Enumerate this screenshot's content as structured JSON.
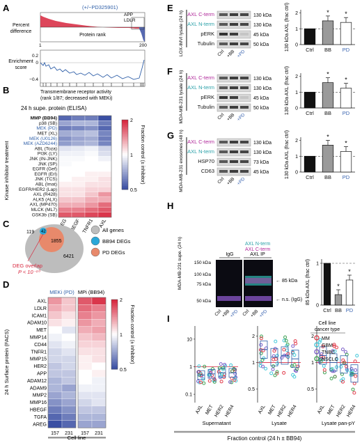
{
  "panels": {
    "A": {
      "label": "A",
      "header": "(+/−PD325901)",
      "y_top": "Percent difference",
      "x_top": "Protein rank",
      "ticks_top": [
        "1",
        "200"
      ],
      "gene_tags": [
        "APP",
        "LDLR"
      ],
      "y_bottom": "Enrichment score",
      "ticks_bottom": [
        "0.2",
        "0",
        "−0.4"
      ],
      "caption_lines": [
        "Transmembrane receptor activity",
        "(rank 1/87; decreased with MEKi)"
      ]
    },
    "B": {
      "label": "B",
      "title": "24 h supe. protein (ELISA)",
      "ylabel": "Kinase inhibitor treatment",
      "rows": [
        "MMP (BB94)",
        "p38 (SB)",
        "MEK (PD)",
        "MET (XL)",
        "MEK (U0126)",
        "MEK (AZD6244)",
        "ABL (Toza)",
        "PI3K (LY)",
        "JNK (IN-JNK)",
        "JNK (SP)",
        "EGFR (Gef)",
        "EGFR (Erl)",
        "JNK (TCS)",
        "ABL (Imat)",
        "EGFR/HER2 (Lap)",
        "AXL (R428)",
        "ALK5 (ALX)",
        "AXL (MP470)",
        "MLCK (ML7)",
        "GSK3b (SB)"
      ],
      "cols": [
        "AREG",
        "HBEGF",
        "TNFR1",
        "AXL"
      ],
      "values": [
        [
          0.55,
          0.6,
          0.6,
          0.5
        ],
        [
          0.7,
          0.75,
          0.75,
          0.6
        ],
        [
          0.6,
          0.62,
          0.65,
          0.55
        ],
        [
          0.72,
          0.75,
          0.78,
          0.62
        ],
        [
          0.65,
          0.7,
          0.72,
          0.6
        ],
        [
          0.68,
          0.72,
          0.75,
          0.62
        ],
        [
          0.9,
          0.92,
          0.95,
          0.85
        ],
        [
          0.95,
          0.95,
          0.98,
          0.88
        ],
        [
          0.98,
          0.98,
          1.0,
          0.95
        ],
        [
          0.98,
          1.0,
          1.0,
          1.0
        ],
        [
          1.0,
          1.0,
          1.0,
          1.0
        ],
        [
          1.0,
          1.0,
          1.05,
          1.05
        ],
        [
          1.0,
          1.05,
          1.05,
          1.1
        ],
        [
          1.05,
          1.05,
          1.1,
          1.1
        ],
        [
          1.1,
          1.1,
          1.15,
          1.15
        ],
        [
          1.1,
          1.1,
          1.2,
          1.4
        ],
        [
          1.2,
          1.2,
          1.3,
          1.3
        ],
        [
          1.3,
          1.3,
          1.4,
          1.6
        ],
        [
          1.5,
          1.5,
          1.6,
          1.7
        ],
        [
          1.7,
          1.7,
          1.8,
          1.9
        ]
      ],
      "cbar_label": "Fraction control (± inhibitor)",
      "cbar_ticks": [
        "2",
        "1",
        "0.5"
      ]
    },
    "C": {
      "label": "C",
      "counts": [
        "119",
        "42",
        "1855",
        "6421"
      ],
      "legend": [
        "All genes",
        "BB94 DEGs",
        "PD DEGs"
      ],
      "overlap_lines": [
        "DEG overlap",
        "P < 10⁻¹⁰"
      ]
    },
    "D": {
      "label": "D",
      "col_headers": [
        "MEKi (PD)",
        "MPi (BB94)"
      ],
      "ylabel": "24 h Surface protein (FACS)",
      "rows": [
        "AXL",
        "LDLR",
        "ICAM1",
        "ADAM10",
        "MET",
        "MMP14",
        "CD44",
        "TNFR1",
        "MMP15",
        "HER2",
        "APP",
        "ADAM12",
        "ADAM9",
        "MMP2",
        "MMP16",
        "HBEGF",
        "TGFA",
        "AREG"
      ],
      "cols": [
        "157",
        "231",
        "157",
        "231"
      ],
      "values": [
        [
          1.4,
          1.2,
          1.7,
          1.9
        ],
        [
          1.3,
          1.2,
          1.6,
          1.5
        ],
        [
          1.2,
          1.1,
          1.5,
          1.4
        ],
        [
          1.1,
          1.05,
          1.4,
          1.3
        ],
        [
          1.0,
          0.9,
          1.3,
          1.35
        ],
        [
          0.95,
          1.0,
          1.2,
          1.25
        ],
        [
          0.9,
          0.95,
          1.15,
          1.15
        ],
        [
          0.85,
          0.9,
          1.1,
          1.1
        ],
        [
          0.85,
          0.85,
          1.05,
          1.1
        ],
        [
          0.8,
          0.85,
          1.05,
          1.0
        ],
        [
          0.8,
          0.8,
          1.0,
          1.05
        ],
        [
          0.75,
          0.8,
          1.0,
          0.95
        ],
        [
          0.75,
          0.7,
          0.95,
          0.95
        ],
        [
          0.7,
          0.75,
          0.9,
          0.9
        ],
        [
          0.65,
          0.7,
          0.85,
          0.9
        ],
        [
          0.6,
          0.65,
          0.8,
          0.8
        ],
        [
          0.55,
          0.6,
          0.75,
          0.75
        ],
        [
          0.5,
          0.55,
          0.7,
          0.7
        ]
      ],
      "cbar_label": "Fraction control (± inhibitor)",
      "cbar_ticks": [
        "2",
        "1",
        "0.5"
      ],
      "xlabel": "Cell line"
    },
    "E": {
      "label": "E",
      "side": "LOX-IMVI lysate (24 h)",
      "rows": [
        {
          "name": "AXL C-term",
          "kda": "130 kDa",
          "color": "#b0279a"
        },
        {
          "name": "AXL N-term",
          "kda": "130 kDa",
          "color": "#2aa0a8"
        },
        {
          "name": "pERK",
          "kda": "45 kDa",
          "color": "#111111"
        },
        {
          "name": "Tubulin",
          "kda": "50 kDa",
          "color": "#111111"
        }
      ],
      "lanes": [
        "Ctrl",
        "+BB",
        "+PD"
      ],
      "ylabel": "130 kDa AXL (frac ctrl)",
      "cats": [
        "Ctrl",
        "BB",
        "PD"
      ],
      "values": [
        1,
        1.5,
        1.4
      ],
      "ticks": [
        "2",
        "1",
        "0"
      ],
      "stars": [
        "*",
        "*"
      ]
    },
    "F": {
      "label": "F",
      "side": "MDA-MB-231 lysate (24 h)",
      "rows": [
        {
          "name": "AXL C-term",
          "kda": "130 kDa",
          "color": "#b0279a"
        },
        {
          "name": "AXL N-term",
          "kda": "130 kDa",
          "color": "#2aa0a8"
        },
        {
          "name": "pERK",
          "kda": "45 kDa",
          "color": "#111111"
        },
        {
          "name": "Tubulin",
          "kda": "50 kDa",
          "color": "#111111"
        }
      ],
      "lanes": [
        "Ctrl",
        "+BB",
        "+PD"
      ],
      "ylabel": "130 kDa AXL (frac ctrl)",
      "cats": [
        "Ctrl",
        "BB",
        "PD"
      ],
      "values": [
        1,
        1.6,
        1.25
      ],
      "ticks": [
        "2",
        "1",
        "0"
      ],
      "stars": [
        "*",
        "*"
      ]
    },
    "G": {
      "label": "G",
      "side": "MDA-MB-231 exosomes (48 h)",
      "rows": [
        {
          "name": "AXL C-term",
          "kda": "130 kDa",
          "color": "#b0279a"
        },
        {
          "name": "AXL N-term",
          "kda": "130 kDa",
          "color": "#2aa0a8"
        },
        {
          "name": "HSP70",
          "kda": "73 kDa",
          "color": "#111111"
        },
        {
          "name": "CD63",
          "kda": "45 kDa",
          "color": "#111111"
        }
      ],
      "lanes": [
        "Ctrl",
        "+BB",
        "+PD"
      ],
      "ylabel": "130 kDa AXL (frac ctrl)",
      "cats": [
        "Ctrl",
        "BB",
        "PD"
      ],
      "values": [
        1,
        1.7,
        1.3
      ],
      "ticks": [
        "2",
        "1",
        "0"
      ],
      "stars": [
        "*",
        "*"
      ]
    },
    "H": {
      "label": "H",
      "side": "MDA-MB-231 supe. (24 h)",
      "groups": [
        "IgG",
        "AXL IP"
      ],
      "legend": [
        "AXL N-term",
        "AXL C-term"
      ],
      "legend_colors": [
        "#2aa0a8",
        "#b0279a"
      ],
      "mw": [
        "150 kDa",
        "100 kDa",
        "75 kDa",
        "50 kDa"
      ],
      "lanes": [
        "Ctrl",
        "+BB",
        "+PD",
        "Ctrl",
        "+BB",
        "+PD"
      ],
      "arrows": [
        "85 kDa",
        "n.s. (IgG)"
      ],
      "ylabel": "85 kDa AXL (frac ctrl)",
      "cats": [
        "Ctrl",
        "BB",
        "PD"
      ],
      "values": [
        1,
        0.25,
        0.6
      ],
      "ticks": [
        "1",
        "0"
      ],
      "stars": [
        "*",
        "*"
      ]
    },
    "I": {
      "label": "I",
      "legend_title": "Cell line cancer type",
      "legend": [
        {
          "name": "MM",
          "color": "#e23b4a"
        },
        {
          "name": "GBM",
          "color": "#3fc6d8"
        },
        {
          "name": "TNBC",
          "color": "#7a5cc8"
        },
        {
          "name": "NSCLC",
          "color": "#3aa050"
        }
      ],
      "subplots": [
        {
          "title": "Supernatant",
          "cats": [
            "AXL",
            "MET",
            "HER2",
            "HER4"
          ],
          "ticks": [
            "10",
            "1",
            "0.1"
          ],
          "medians": [
            0.5,
            0.55,
            0.6,
            0.6
          ]
        },
        {
          "title": "Lysate",
          "cats": [
            "AXL",
            "MET",
            "HER2",
            "HER4"
          ],
          "ticks": [
            "2",
            "1",
            "0.5"
          ],
          "medians": [
            1.4,
            1.15,
            1.2,
            1.1
          ]
        },
        {
          "title": "Lysate pan-pY",
          "cats": [
            "AXL",
            "MET",
            "HER2",
            "HER4"
          ],
          "ticks": [
            "2",
            "1",
            "0.5"
          ],
          "medians": [
            1.2,
            1.0,
            0.95,
            0.75
          ]
        }
      ],
      "xlabel": "Fraction control (24 h ± BB94)"
    }
  },
  "colors": {
    "heat_low": "#3a4fa3",
    "heat_mid": "#ffffff",
    "heat_high": "#d7263d",
    "bb_blue": "#2f5fa8",
    "pd_blue": "#3a64b0",
    "red_plot": "#d7263d"
  }
}
